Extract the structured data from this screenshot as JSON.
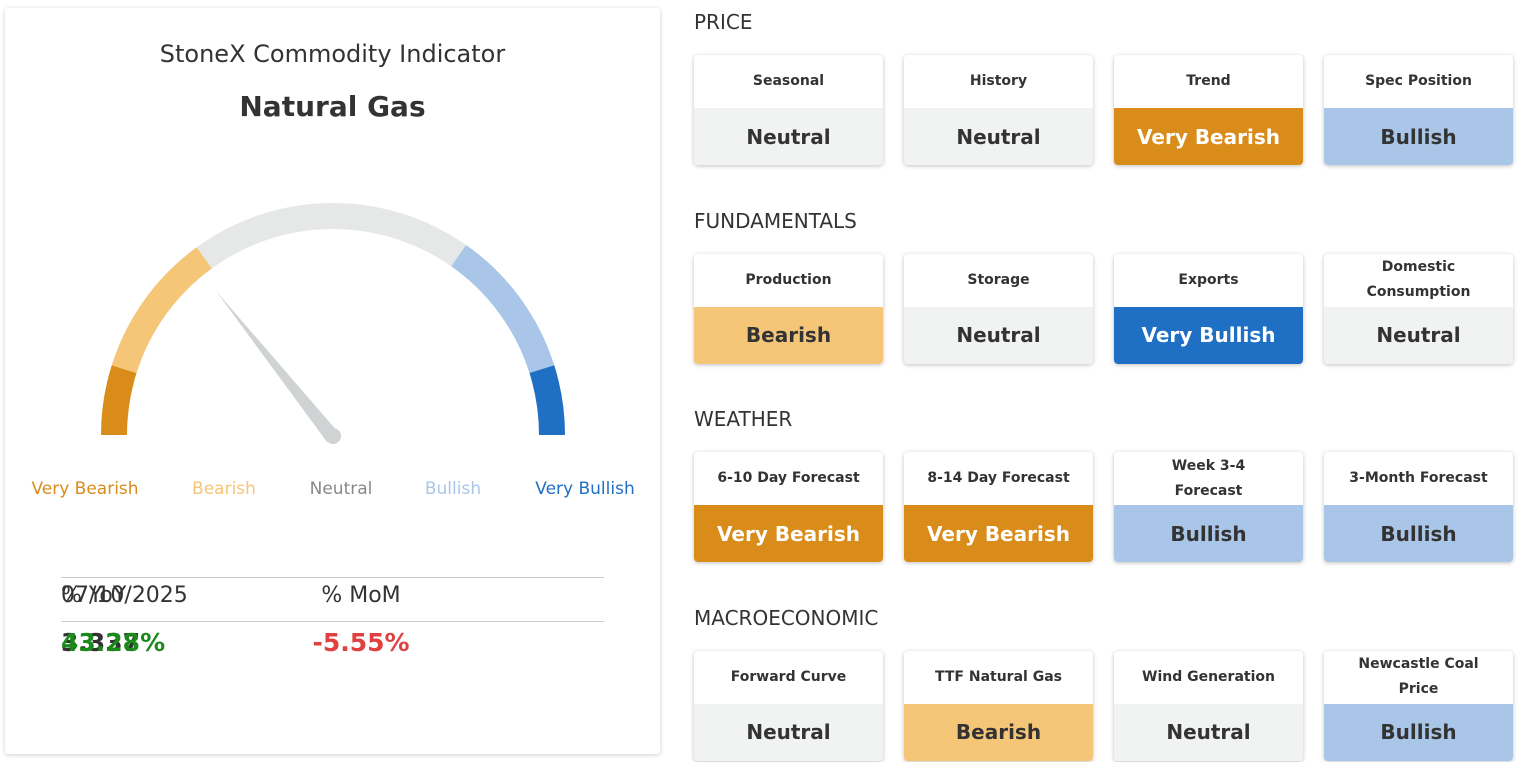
{
  "header": {
    "subtitle": "StoneX Commodity Indicator",
    "title": "Natural Gas"
  },
  "gauge": {
    "labels": [
      {
        "text": "Very Bearish",
        "color": "#d98c1a"
      },
      {
        "text": "Bearish",
        "color": "#f5c578"
      },
      {
        "text": "Neutral",
        "color": "#888888"
      },
      {
        "text": "Bullish",
        "color": "#a9c6e8"
      },
      {
        "text": "Very Bullish",
        "color": "#1f6fc4"
      }
    ]
  },
  "table": {
    "header": [
      "07/10/2025",
      "% MoM",
      "% YoY"
    ],
    "rows": [
      [
        "3.337",
        "-5.55%",
        "43.28%"
      ]
    ],
    "row_colors": [
      "#333333",
      "#e04040",
      "#1a8a1a"
    ]
  },
  "sections": [
    {
      "title": "PRICE",
      "tiles": [
        {
          "label": "Seasonal",
          "rating": "Neutral",
          "color": "#f1f2f2",
          "text_color": "#333333"
        },
        {
          "label": "History",
          "rating": "Neutral",
          "color": "#f1f2f2",
          "text_color": "#333333"
        },
        {
          "label": "Trend",
          "rating": "Very Bearish",
          "color": "#d98c1a",
          "text_color": "#ffffff"
        },
        {
          "label": "Spec Position",
          "rating": "Bullish",
          "color": "#a9c6e8",
          "text_color": "#333333"
        }
      ]
    },
    {
      "title": "FUNDAMENTALS",
      "tiles": [
        {
          "label": "Production",
          "rating": "Bearish",
          "color": "#f5c578",
          "text_color": "#333333"
        },
        {
          "label": "Storage",
          "rating": "Neutral",
          "color": "#f1f2f2",
          "text_color": "#333333"
        },
        {
          "label": "Exports",
          "rating": "Very Bullish",
          "color": "#1f6fc4",
          "text_color": "#ffffff"
        },
        {
          "label": "Domestic Consumption",
          "rating": "Neutral",
          "color": "#f1f2f2",
          "text_color": "#333333"
        }
      ]
    },
    {
      "title": "WEATHER",
      "tiles": [
        {
          "label": "6-10 Day Forecast",
          "rating": "Very Bearish",
          "color": "#d98c1a",
          "text_color": "#ffffff"
        },
        {
          "label": "8-14 Day Forecast",
          "rating": "Very Bearish",
          "color": "#d98c1a",
          "text_color": "#ffffff"
        },
        {
          "label": "Week 3-4 Forecast",
          "rating": "Bullish",
          "color": "#a9c6e8",
          "text_color": "#333333"
        },
        {
          "label": "3-Month Forecast",
          "rating": "Bullish",
          "color": "#a9c6e8",
          "text_color": "#333333"
        }
      ]
    },
    {
      "title": "MACROECONOMIC",
      "tiles": [
        {
          "label": "Forward Curve",
          "rating": "Neutral",
          "color": "#f1f2f2",
          "text_color": "#333333"
        },
        {
          "label": "TTF Natural Gas",
          "rating": "Bearish",
          "color": "#f5c578",
          "text_color": "#333333"
        },
        {
          "label": "Wind Generation",
          "rating": "Neutral",
          "color": "#f1f2f2",
          "text_color": "#333333"
        },
        {
          "label": "Newcastle Coal Price",
          "rating": "Bullish",
          "color": "#a9c6e8",
          "text_color": "#333333"
        }
      ]
    }
  ]
}
